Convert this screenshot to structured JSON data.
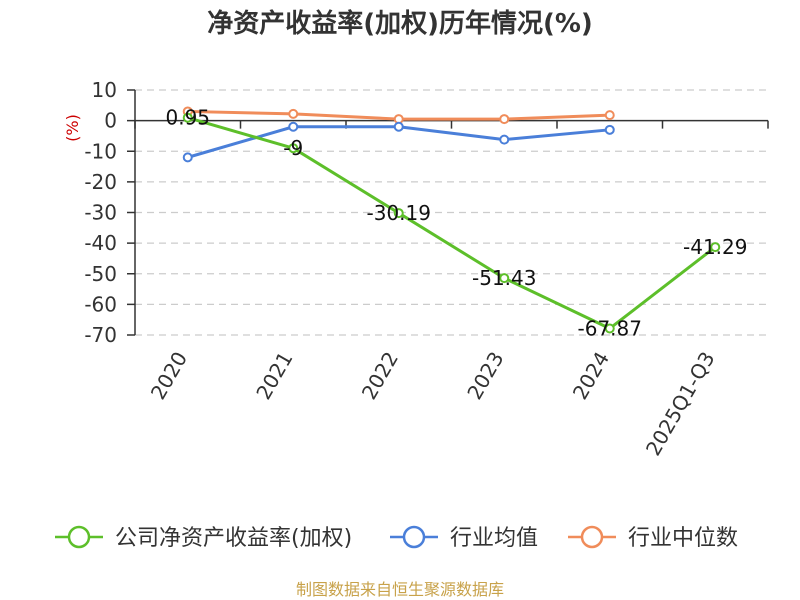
{
  "chart_data": {
    "type": "line",
    "title": "净资产收益率(加权)历年情况(%)",
    "y_unit": "(%)",
    "categories": [
      "2020",
      "2021",
      "2022",
      "2023",
      "2024",
      "2025Q1-Q3"
    ],
    "ylim": [
      -70,
      10
    ],
    "yticks": [
      10,
      0,
      -10,
      -20,
      -30,
      -40,
      -50,
      -60,
      -70
    ],
    "grid": true,
    "legend_position": "bottom",
    "series": [
      {
        "name": "公司净资产收益率(加权)",
        "color": "#5dbf2a",
        "values": [
          0.95,
          -9,
          -30.19,
          -51.43,
          -67.87,
          -41.29
        ],
        "labels": [
          "0.95",
          "-9",
          "-30.19",
          "-51.43",
          "-67.87",
          "-41.29"
        ]
      },
      {
        "name": "行业均值",
        "color": "#4a7fd9",
        "values": [
          -12.0,
          -2.0,
          -2.0,
          -6.2,
          -3.0,
          null
        ]
      },
      {
        "name": "行业中位数",
        "color": "#f08c5a",
        "values": [
          3.0,
          2.2,
          0.5,
          0.5,
          1.8,
          null
        ]
      }
    ]
  },
  "source": "制图数据来自恒生聚源数据库"
}
